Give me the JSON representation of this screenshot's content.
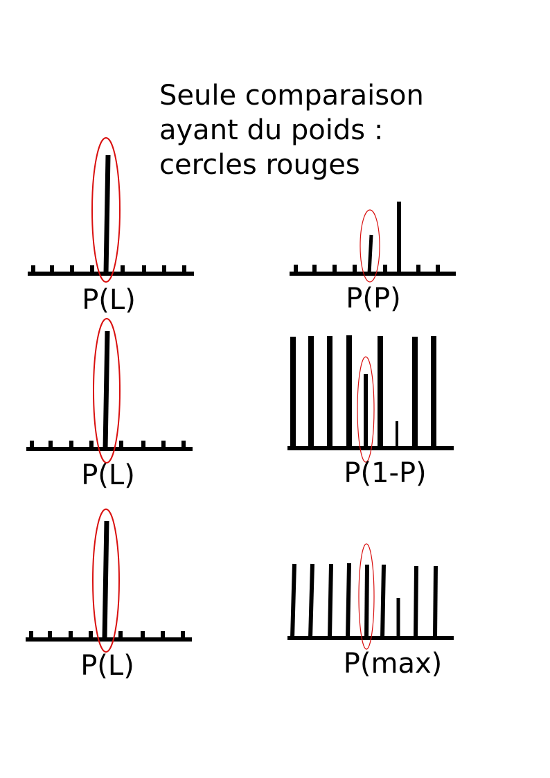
{
  "title_lines": [
    "Seule comparaison",
    "ayant du poids :",
    "cercles rouges"
  ],
  "panels": [
    {
      "label": "P(L)"
    },
    {
      "label": "P(P)"
    },
    {
      "label": "P(L)"
    },
    {
      "label": "P(1-P)"
    },
    {
      "label": "P(L)"
    },
    {
      "label": "P(max)"
    }
  ],
  "colors": {
    "ink": "#000000",
    "highlight": "#d9100f",
    "background": "#ffffff"
  }
}
